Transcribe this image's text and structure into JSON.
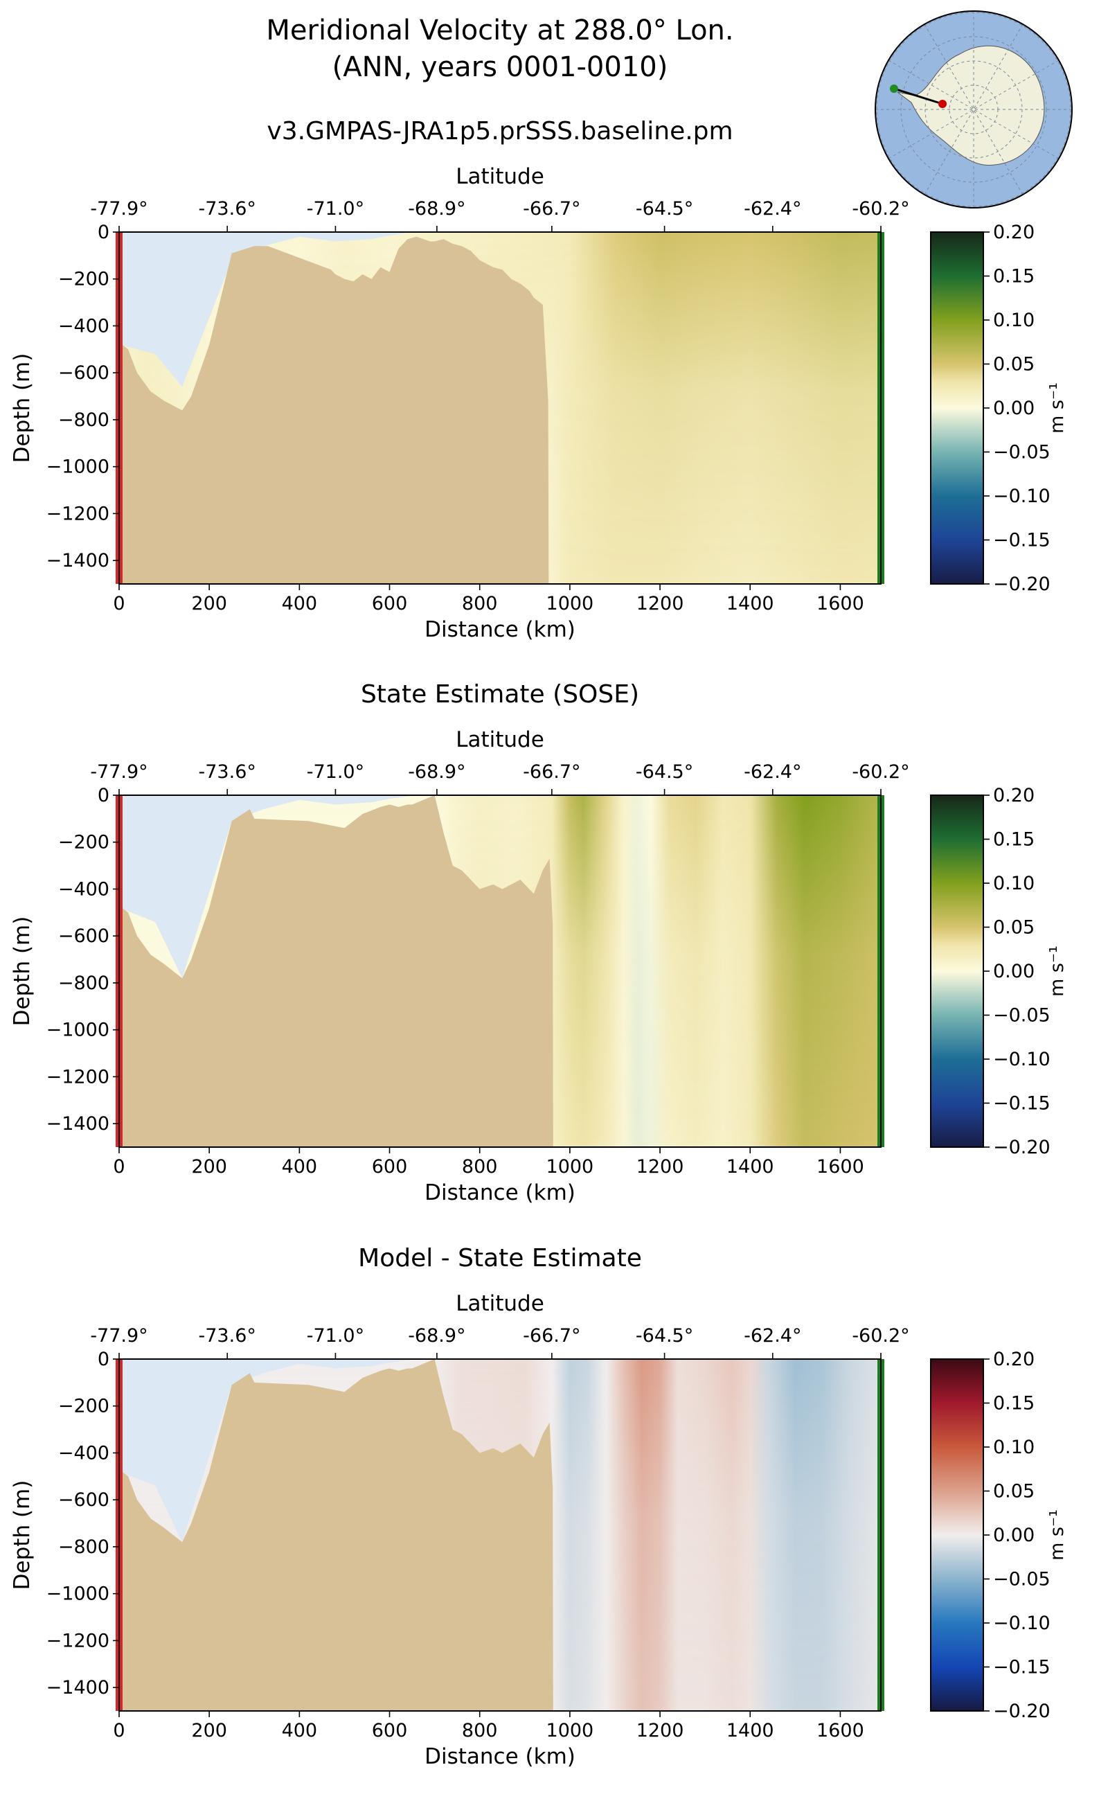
{
  "figure": {
    "title_line1": "Meridional Velocity at 288.0° Lon.",
    "title_line2": "(ANN, years 0001-0010)"
  },
  "shared_axes": {
    "xlabel": "Distance (km)",
    "ylabel": "Depth (m)",
    "top_axis_label": "Latitude",
    "xlim": [
      0,
      1690
    ],
    "ylim": [
      -1500,
      0
    ],
    "x_ticks": [
      0,
      200,
      400,
      600,
      800,
      1000,
      1200,
      1400,
      1600
    ],
    "x_tick_labels": [
      "0",
      "200",
      "400",
      "600",
      "800",
      "1000",
      "1200",
      "1400",
      "1600"
    ],
    "y_ticks": [
      0,
      -200,
      -400,
      -600,
      -800,
      -1000,
      -1200,
      -1400
    ],
    "y_tick_labels": [
      "0",
      "−200",
      "−400",
      "−600",
      "−800",
      "−1000",
      "−1200",
      "−1400"
    ],
    "lat_tick_positions_km": [
      0,
      240,
      480,
      705,
      960,
      1210,
      1450,
      1690
    ],
    "lat_tick_labels": [
      "-77.9°",
      "-73.6°",
      "-71.0°",
      "-68.9°",
      "-66.7°",
      "-64.5°",
      "-62.4°",
      "-60.2°"
    ],
    "colorbar_ticks": [
      0.2,
      0.15,
      0.1,
      0.05,
      0.0,
      -0.05,
      -0.1,
      -0.15,
      -0.2
    ],
    "colorbar_tick_labels": [
      "0.20",
      "0.15",
      "0.10",
      "0.05",
      "0.00",
      "−0.05",
      "−0.10",
      "−0.15",
      "−0.20"
    ],
    "colorbar_label": "m s⁻¹",
    "colorbar_range": [
      -0.2,
      0.2
    ]
  },
  "colors": {
    "land": "#d8c196",
    "ice_shelf_cavity": "#dde8f5",
    "start_marker": "#d62728",
    "end_marker": "#1b7e1b"
  },
  "inset_map": {
    "ocean_color": "#98b8e0",
    "land_color": "#efefdc",
    "start_point_color": "#cc0000",
    "end_point_color": "#228b22"
  },
  "chart_data": [
    {
      "type": "heatmap",
      "title": "v3.GMPAS-JRA1p5.prSSS.baseline.pm",
      "xlabel": "Distance (km)",
      "ylabel": "Depth (m)",
      "xlim": [
        0,
        1690
      ],
      "ylim": [
        -1500,
        0
      ],
      "colormap": "speed",
      "colorbar_range": [
        -0.2,
        0.2
      ],
      "velocity_columns": {
        "x_km": [
          0,
          60,
          120,
          200,
          300,
          400,
          500,
          600,
          700,
          800,
          900,
          960,
          1000,
          1100,
          1200,
          1300,
          1400,
          1500,
          1600,
          1690
        ],
        "surface_v": [
          0.008,
          0.015,
          0.01,
          0.004,
          0.005,
          0.005,
          0.012,
          0.008,
          0.012,
          0.015,
          0.018,
          0.02,
          0.022,
          0.045,
          0.055,
          0.052,
          0.05,
          0.055,
          0.062,
          0.06
        ],
        "deep_v": [
          0.01,
          0.015,
          0.012,
          0.005,
          0.003,
          0.003,
          0.01,
          0.01,
          0.014,
          0.016,
          0.018,
          0.01,
          0.02,
          0.025,
          0.024,
          0.02,
          0.018,
          0.022,
          0.026,
          0.025
        ]
      },
      "bathymetry_depth_m": {
        "x_km": [
          0,
          20,
          40,
          70,
          100,
          140,
          160,
          200,
          250,
          300,
          315,
          330,
          470,
          480,
          500,
          520,
          540,
          560,
          580,
          600,
          620,
          640,
          660,
          690,
          700,
          720,
          740,
          760,
          780,
          790,
          800,
          830,
          850,
          870,
          890,
          910,
          920,
          940,
          952,
          953,
          1690
        ],
        "depth": [
          -470,
          -500,
          -600,
          -680,
          -720,
          -760,
          -700,
          -480,
          -90,
          -60,
          -60,
          -60,
          -160,
          -180,
          -200,
          -210,
          -180,
          -200,
          -150,
          -170,
          -70,
          -30,
          -20,
          -40,
          -40,
          -30,
          -50,
          -60,
          -80,
          -100,
          -120,
          -150,
          -160,
          -200,
          -220,
          -250,
          -280,
          -310,
          -720,
          -1500,
          -1500
        ]
      },
      "ice_shelf_base_m": {
        "x_km": [
          0,
          80,
          140,
          250,
          320,
          400,
          480,
          560,
          600,
          650
        ],
        "depth": [
          -480,
          -520,
          -660,
          -120,
          -60,
          -20,
          -40,
          -30,
          -15,
          0
        ]
      }
    },
    {
      "type": "heatmap",
      "title": "State Estimate (SOSE)",
      "xlabel": "Distance (km)",
      "ylabel": "Depth (m)",
      "xlim": [
        0,
        1690
      ],
      "ylim": [
        -1500,
        0
      ],
      "colormap": "speed",
      "colorbar_range": [
        -0.2,
        0.2
      ],
      "velocity_columns": {
        "x_km": [
          0,
          700,
          750,
          800,
          880,
          960,
          1000,
          1030,
          1080,
          1120,
          1150,
          1180,
          1220,
          1280,
          1340,
          1400,
          1460,
          1520,
          1600,
          1690
        ],
        "surface_v": [
          0.0,
          0.0,
          0.01,
          0.015,
          0.012,
          0.02,
          0.06,
          0.075,
          0.04,
          0.01,
          -0.005,
          0.0,
          0.035,
          0.04,
          0.025,
          0.03,
          0.08,
          0.1,
          0.09,
          0.07
        ],
        "deep_v": [
          0.0,
          0.0,
          0.01,
          0.015,
          0.012,
          0.015,
          0.025,
          0.03,
          0.02,
          0.005,
          -0.008,
          -0.005,
          0.012,
          0.018,
          0.012,
          0.02,
          0.045,
          0.06,
          0.055,
          0.05
        ]
      },
      "bathymetry_depth_m": {
        "x_km": [
          0,
          20,
          40,
          70,
          100,
          140,
          160,
          200,
          250,
          290,
          300,
          420,
          500,
          540,
          580,
          600,
          620,
          640,
          650,
          700,
          720,
          740,
          760,
          780,
          790,
          800,
          830,
          850,
          870,
          890,
          910,
          920,
          940,
          955,
          962,
          963,
          1690
        ],
        "depth": [
          -470,
          -500,
          -600,
          -680,
          -720,
          -780,
          -700,
          -480,
          -110,
          -60,
          -100,
          -110,
          -140,
          -80,
          -50,
          -40,
          -50,
          -40,
          -40,
          0,
          -160,
          -300,
          -320,
          -360,
          -380,
          -400,
          -380,
          -400,
          -380,
          -360,
          -400,
          -420,
          -320,
          -270,
          -550,
          -1500,
          -1500
        ]
      },
      "ice_shelf_base_m": {
        "x_km": [
          0,
          80,
          140,
          250,
          320,
          400,
          480,
          560,
          600,
          660
        ],
        "depth": [
          -480,
          -540,
          -780,
          -110,
          -60,
          -20,
          -40,
          -30,
          -15,
          0
        ]
      }
    },
    {
      "type": "heatmap",
      "title": "Model - State Estimate",
      "xlabel": "Distance (km)",
      "ylabel": "Depth (m)",
      "xlim": [
        0,
        1690
      ],
      "ylim": [
        -1500,
        0
      ],
      "colormap": "balance",
      "colorbar_range": [
        -0.2,
        0.2
      ],
      "velocity_columns": {
        "x_km": [
          0,
          700,
          760,
          820,
          900,
          960,
          1000,
          1040,
          1080,
          1120,
          1160,
          1200,
          1240,
          1300,
          1360,
          1400,
          1440,
          1500,
          1560,
          1620,
          1690
        ],
        "surface_v": [
          0.0,
          0.0,
          0.01,
          0.01,
          0.012,
          0.0,
          -0.025,
          -0.02,
          0.0,
          0.03,
          0.055,
          0.045,
          0.01,
          0.015,
          0.025,
          0.015,
          -0.02,
          -0.04,
          -0.035,
          -0.02,
          -0.01
        ],
        "deep_v": [
          0.0,
          0.0,
          0.005,
          0.008,
          0.006,
          0.0,
          -0.012,
          -0.008,
          0.0,
          0.015,
          0.028,
          0.022,
          0.006,
          0.006,
          0.01,
          0.006,
          -0.012,
          -0.02,
          -0.02,
          -0.012,
          -0.005
        ]
      },
      "bathymetry_depth_m": {
        "x_km": [
          0,
          20,
          40,
          70,
          100,
          140,
          160,
          200,
          250,
          290,
          300,
          420,
          500,
          540,
          580,
          600,
          620,
          640,
          650,
          700,
          720,
          740,
          760,
          780,
          790,
          800,
          830,
          850,
          870,
          890,
          910,
          920,
          940,
          955,
          962,
          963,
          1690
        ],
        "depth": [
          -470,
          -500,
          -600,
          -680,
          -720,
          -780,
          -700,
          -480,
          -110,
          -60,
          -100,
          -110,
          -140,
          -80,
          -50,
          -40,
          -50,
          -40,
          -40,
          0,
          -160,
          -300,
          -320,
          -360,
          -380,
          -400,
          -380,
          -400,
          -380,
          -360,
          -400,
          -420,
          -320,
          -270,
          -550,
          -1500,
          -1500
        ]
      },
      "ice_shelf_base_m": {
        "x_km": [
          0,
          80,
          140,
          250,
          320,
          400,
          480,
          560,
          600,
          660
        ],
        "depth": [
          -480,
          -540,
          -780,
          -110,
          -60,
          -20,
          -40,
          -30,
          -15,
          0
        ]
      }
    }
  ]
}
